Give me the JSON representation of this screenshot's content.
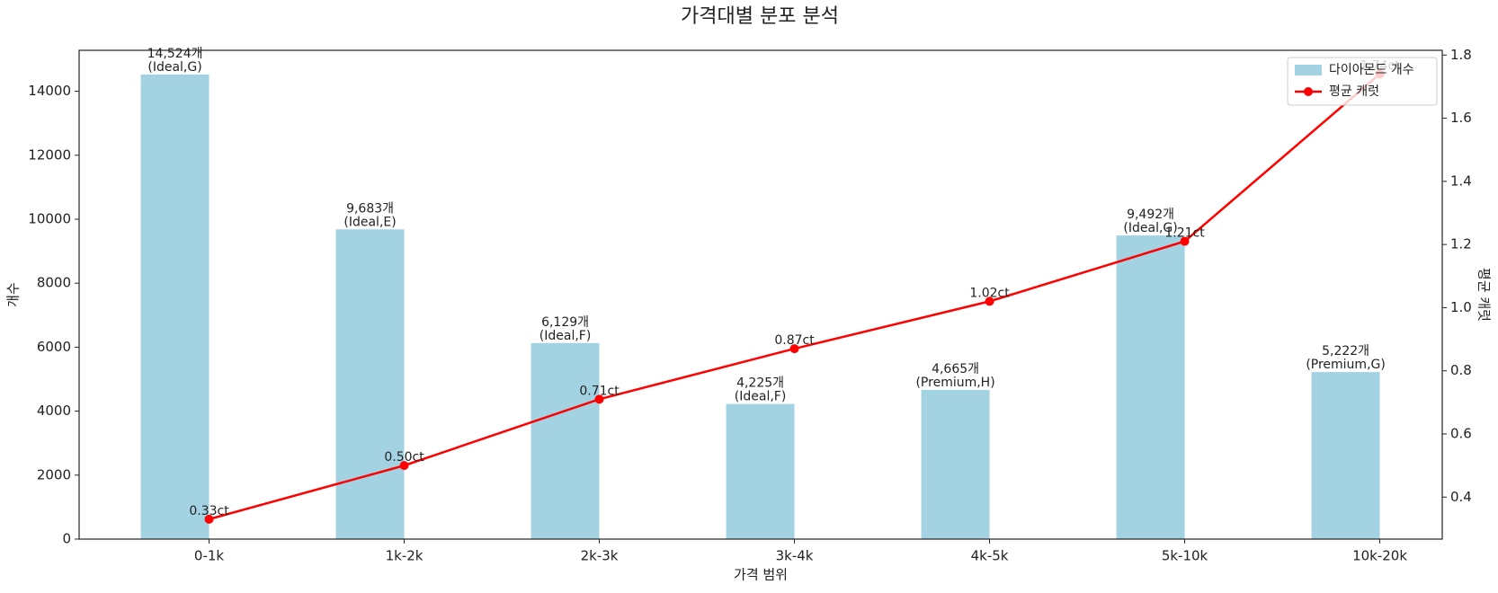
{
  "chart_data": {
    "type": "combo",
    "title": "가격대별 분포 분석",
    "x_label": "가격 범위",
    "y_label": "개수",
    "y2_label": "평균 캐럿",
    "categories": [
      "0-1k",
      "1k-2k",
      "2k-3k",
      "3k-4k",
      "4k-5k",
      "5k-10k",
      "10k-20k"
    ],
    "series": [
      {
        "name": "다이아몬드 개수",
        "type": "bar",
        "color": "#a3d2e2",
        "values": [
          14524,
          9683,
          6129,
          4225,
          4665,
          9492,
          5222
        ],
        "value_labels": [
          "14,524개",
          "9,683개",
          "6,129개",
          "4,225개",
          "4,665개",
          "9,492개",
          "5,222개"
        ],
        "annotations": [
          "(Ideal,G)",
          "(Ideal,E)",
          "(Ideal,F)",
          "(Ideal,F)",
          "(Premium,H)",
          "(Ideal,G)",
          "(Premium,G)"
        ]
      },
      {
        "name": "평균 캐럿",
        "type": "line",
        "color": "#ff0000",
        "axis": "y2",
        "values": [
          0.33,
          0.5,
          0.71,
          0.87,
          1.02,
          1.21,
          1.74
        ],
        "value_labels": [
          "0.33ct",
          "0.50ct",
          "0.71ct",
          "0.87ct",
          "1.02ct",
          "1.21ct",
          "1.74ct"
        ]
      }
    ],
    "ylim": [
      0,
      15280
    ],
    "yticks": [
      0,
      2000,
      4000,
      6000,
      8000,
      10000,
      12000,
      14000
    ],
    "y2lim": [
      0.267,
      1.815
    ],
    "y2ticks": [
      0.4,
      0.6,
      0.8,
      {
        "value": 1.0,
        "label": "1.0"
      },
      1.2,
      1.4,
      1.6,
      1.8
    ],
    "legend": "upper right"
  }
}
